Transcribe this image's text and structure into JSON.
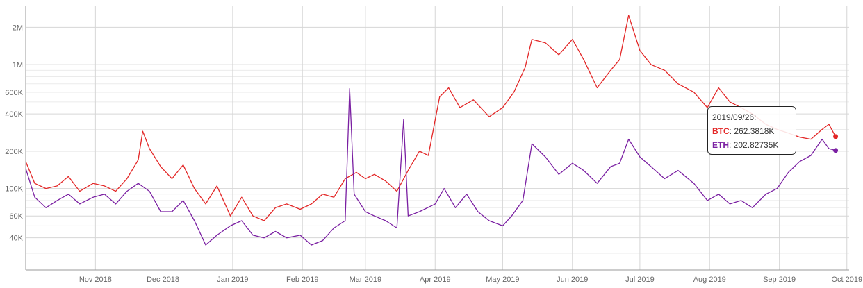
{
  "chart_data": {
    "type": "line",
    "title": "",
    "xlabel": "",
    "ylabel": "",
    "y_scale": "log",
    "ylim": [
      22000,
      3000000
    ],
    "xlim": [
      "2018-10-01",
      "2019-10-02"
    ],
    "grid": true,
    "colors": {
      "BTC": "#e32626",
      "ETH": "#7a1fa2"
    },
    "x_ticks": [
      {
        "label": "Nov 2018",
        "date": "2018-11-01"
      },
      {
        "label": "Dec 2018",
        "date": "2018-12-01"
      },
      {
        "label": "Jan 2019",
        "date": "2019-01-01"
      },
      {
        "label": "Feb 2019",
        "date": "2019-02-01"
      },
      {
        "label": "Mar 2019",
        "date": "2019-03-01"
      },
      {
        "label": "Apr 2019",
        "date": "2019-04-01"
      },
      {
        "label": "May 2019",
        "date": "2019-05-01"
      },
      {
        "label": "Jun 2019",
        "date": "2019-06-01"
      },
      {
        "label": "Jul 2019",
        "date": "2019-07-01"
      },
      {
        "label": "Aug 2019",
        "date": "2019-08-01"
      },
      {
        "label": "Sep 2019",
        "date": "2019-09-01"
      },
      {
        "label": "Oct 2019",
        "date": "2019-10-01"
      }
    ],
    "y_ticks": [
      {
        "label": "40K",
        "value": 40000
      },
      {
        "label": "60K",
        "value": 60000
      },
      {
        "label": "100K",
        "value": 100000
      },
      {
        "label": "200K",
        "value": 200000
      },
      {
        "label": "400K",
        "value": 400000
      },
      {
        "label": "600K",
        "value": 600000
      },
      {
        "label": "1M",
        "value": 1000000
      },
      {
        "label": "2M",
        "value": 2000000
      }
    ],
    "series": [
      {
        "name": "BTC",
        "points": [
          [
            "2018-10-01",
            165000
          ],
          [
            "2018-10-05",
            110000
          ],
          [
            "2018-10-10",
            100000
          ],
          [
            "2018-10-15",
            105000
          ],
          [
            "2018-10-20",
            125000
          ],
          [
            "2018-10-25",
            95000
          ],
          [
            "2018-10-31",
            110000
          ],
          [
            "2018-11-05",
            105000
          ],
          [
            "2018-11-10",
            95000
          ],
          [
            "2018-11-15",
            120000
          ],
          [
            "2018-11-20",
            170000
          ],
          [
            "2018-11-22",
            290000
          ],
          [
            "2018-11-25",
            210000
          ],
          [
            "2018-11-30",
            150000
          ],
          [
            "2018-12-05",
            120000
          ],
          [
            "2018-12-10",
            155000
          ],
          [
            "2018-12-15",
            100000
          ],
          [
            "2018-12-20",
            75000
          ],
          [
            "2018-12-25",
            105000
          ],
          [
            "2018-12-31",
            60000
          ],
          [
            "2019-01-05",
            85000
          ],
          [
            "2019-01-10",
            60000
          ],
          [
            "2019-01-15",
            55000
          ],
          [
            "2019-01-20",
            70000
          ],
          [
            "2019-01-25",
            75000
          ],
          [
            "2019-01-31",
            68000
          ],
          [
            "2019-02-05",
            75000
          ],
          [
            "2019-02-10",
            90000
          ],
          [
            "2019-02-15",
            85000
          ],
          [
            "2019-02-20",
            120000
          ],
          [
            "2019-02-25",
            135000
          ],
          [
            "2019-03-01",
            120000
          ],
          [
            "2019-03-05",
            130000
          ],
          [
            "2019-03-10",
            115000
          ],
          [
            "2019-03-15",
            95000
          ],
          [
            "2019-03-20",
            140000
          ],
          [
            "2019-03-25",
            200000
          ],
          [
            "2019-03-29",
            185000
          ],
          [
            "2019-04-03",
            550000
          ],
          [
            "2019-04-07",
            650000
          ],
          [
            "2019-04-12",
            450000
          ],
          [
            "2019-04-18",
            520000
          ],
          [
            "2019-04-25",
            380000
          ],
          [
            "2019-05-01",
            450000
          ],
          [
            "2019-05-06",
            600000
          ],
          [
            "2019-05-11",
            950000
          ],
          [
            "2019-05-14",
            1600000
          ],
          [
            "2019-05-20",
            1500000
          ],
          [
            "2019-05-26",
            1200000
          ],
          [
            "2019-06-01",
            1600000
          ],
          [
            "2019-06-06",
            1100000
          ],
          [
            "2019-06-12",
            650000
          ],
          [
            "2019-06-18",
            900000
          ],
          [
            "2019-06-22",
            1100000
          ],
          [
            "2019-06-26",
            2500000
          ],
          [
            "2019-07-01",
            1300000
          ],
          [
            "2019-07-06",
            1000000
          ],
          [
            "2019-07-12",
            900000
          ],
          [
            "2019-07-18",
            700000
          ],
          [
            "2019-07-25",
            600000
          ],
          [
            "2019-07-31",
            450000
          ],
          [
            "2019-08-05",
            650000
          ],
          [
            "2019-08-10",
            500000
          ],
          [
            "2019-08-15",
            450000
          ],
          [
            "2019-08-20",
            400000
          ],
          [
            "2019-08-26",
            330000
          ],
          [
            "2019-08-31",
            300000
          ],
          [
            "2019-09-05",
            280000
          ],
          [
            "2019-09-10",
            260000
          ],
          [
            "2019-09-15",
            250000
          ],
          [
            "2019-09-20",
            300000
          ],
          [
            "2019-09-23",
            330000
          ],
          [
            "2019-09-26",
            262381.8
          ]
        ]
      },
      {
        "name": "ETH",
        "points": [
          [
            "2018-10-01",
            145000
          ],
          [
            "2018-10-05",
            85000
          ],
          [
            "2018-10-10",
            70000
          ],
          [
            "2018-10-15",
            80000
          ],
          [
            "2018-10-20",
            90000
          ],
          [
            "2018-10-25",
            75000
          ],
          [
            "2018-10-31",
            85000
          ],
          [
            "2018-11-05",
            90000
          ],
          [
            "2018-11-10",
            75000
          ],
          [
            "2018-11-15",
            95000
          ],
          [
            "2018-11-20",
            110000
          ],
          [
            "2018-11-25",
            95000
          ],
          [
            "2018-11-30",
            65000
          ],
          [
            "2018-12-05",
            65000
          ],
          [
            "2018-12-10",
            80000
          ],
          [
            "2018-12-15",
            55000
          ],
          [
            "2018-12-20",
            35000
          ],
          [
            "2018-12-25",
            42000
          ],
          [
            "2018-12-31",
            50000
          ],
          [
            "2019-01-05",
            55000
          ],
          [
            "2019-01-10",
            42000
          ],
          [
            "2019-01-15",
            40000
          ],
          [
            "2019-01-20",
            45000
          ],
          [
            "2019-01-25",
            40000
          ],
          [
            "2019-01-31",
            42000
          ],
          [
            "2019-02-05",
            35000
          ],
          [
            "2019-02-10",
            38000
          ],
          [
            "2019-02-15",
            48000
          ],
          [
            "2019-02-20",
            55000
          ],
          [
            "2019-02-22",
            640000
          ],
          [
            "2019-02-24",
            90000
          ],
          [
            "2019-03-01",
            65000
          ],
          [
            "2019-03-05",
            60000
          ],
          [
            "2019-03-10",
            55000
          ],
          [
            "2019-03-15",
            48000
          ],
          [
            "2019-03-18",
            360000
          ],
          [
            "2019-03-20",
            60000
          ],
          [
            "2019-03-25",
            65000
          ],
          [
            "2019-04-01",
            75000
          ],
          [
            "2019-04-05",
            100000
          ],
          [
            "2019-04-10",
            70000
          ],
          [
            "2019-04-15",
            90000
          ],
          [
            "2019-04-20",
            65000
          ],
          [
            "2019-04-25",
            55000
          ],
          [
            "2019-05-01",
            50000
          ],
          [
            "2019-05-05",
            60000
          ],
          [
            "2019-05-10",
            80000
          ],
          [
            "2019-05-14",
            230000
          ],
          [
            "2019-05-20",
            180000
          ],
          [
            "2019-05-26",
            130000
          ],
          [
            "2019-06-01",
            160000
          ],
          [
            "2019-06-06",
            140000
          ],
          [
            "2019-06-12",
            110000
          ],
          [
            "2019-06-18",
            150000
          ],
          [
            "2019-06-22",
            160000
          ],
          [
            "2019-06-26",
            250000
          ],
          [
            "2019-07-01",
            180000
          ],
          [
            "2019-07-06",
            150000
          ],
          [
            "2019-07-12",
            120000
          ],
          [
            "2019-07-18",
            140000
          ],
          [
            "2019-07-25",
            110000
          ],
          [
            "2019-07-31",
            80000
          ],
          [
            "2019-08-05",
            90000
          ],
          [
            "2019-08-10",
            75000
          ],
          [
            "2019-08-15",
            80000
          ],
          [
            "2019-08-20",
            70000
          ],
          [
            "2019-08-26",
            90000
          ],
          [
            "2019-08-31",
            100000
          ],
          [
            "2019-09-05",
            135000
          ],
          [
            "2019-09-10",
            165000
          ],
          [
            "2019-09-15",
            185000
          ],
          [
            "2019-09-20",
            250000
          ],
          [
            "2019-09-23",
            210000
          ],
          [
            "2019-09-26",
            202827.35
          ]
        ]
      }
    ],
    "tooltip": {
      "date": "2019/09/26:",
      "btc_label": "BTC",
      "btc_value": ": 262.3818K",
      "eth_label": "ETH",
      "eth_value": ": 202.82735K",
      "position": "top-right"
    }
  }
}
